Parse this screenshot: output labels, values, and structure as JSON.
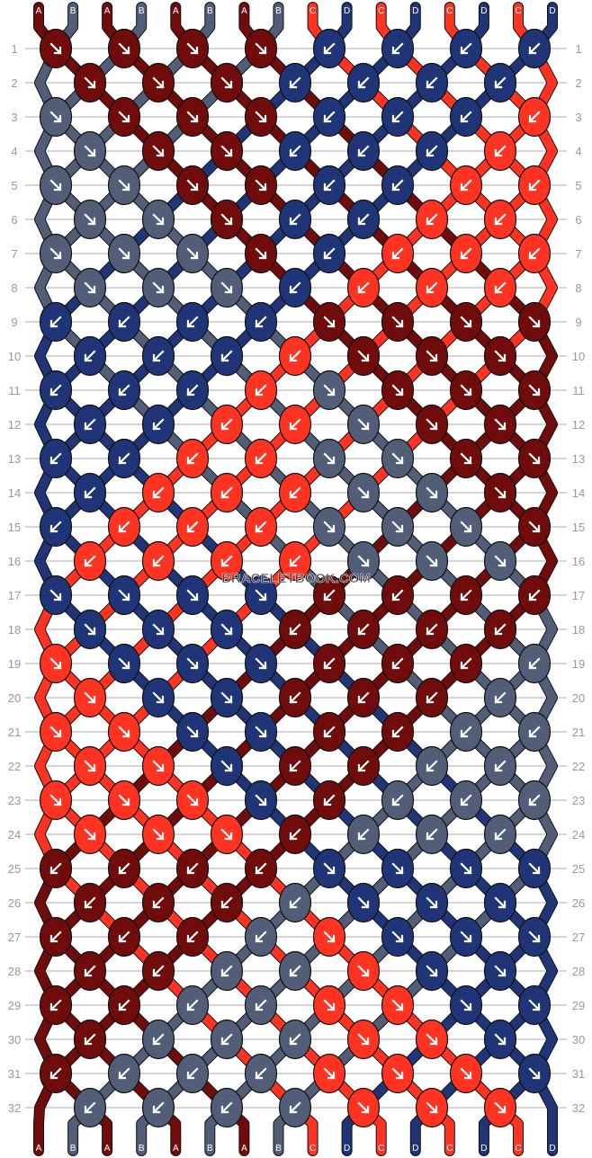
{
  "watermark": "BRACELETBOOK.COM",
  "colors": {
    "A": "#700c0c",
    "B": "#525e78",
    "C": "#ff3322",
    "D": "#203578"
  },
  "strings_top": [
    "A",
    "B",
    "A",
    "B",
    "A",
    "B",
    "A",
    "B",
    "C",
    "D",
    "C",
    "D",
    "C",
    "D",
    "C",
    "D"
  ],
  "strings_bottom": [
    "A",
    "B",
    "A",
    "B",
    "A",
    "B",
    "A",
    "B",
    "C",
    "D",
    "C",
    "D",
    "C",
    "D",
    "C",
    "D"
  ],
  "rows": [
    [
      "A↘",
      "A↘",
      "A↘",
      "A↘",
      "D↙",
      "D↙",
      "D↙",
      "D↙"
    ],
    [
      "A↘",
      "A↘",
      "A↘",
      "D↙",
      "D↙",
      "D↙",
      "D↙"
    ],
    [
      "B↘",
      "A↘",
      "A↘",
      "A↘",
      "D↙",
      "D↙",
      "D↙",
      "C↙"
    ],
    [
      "B↘",
      "A↘",
      "A↘",
      "D↙",
      "D↙",
      "D↙",
      "C↙"
    ],
    [
      "B↘",
      "B↘",
      "A↘",
      "A↘",
      "D↙",
      "D↙",
      "C↙",
      "C↙"
    ],
    [
      "B↘",
      "B↘",
      "A↘",
      "D↙",
      "D↙",
      "C↙",
      "C↙"
    ],
    [
      "B↘",
      "B↘",
      "B↘",
      "A↘",
      "D↙",
      "C↙",
      "C↙",
      "C↙"
    ],
    [
      "B↘",
      "B↘",
      "B↘",
      "D↙",
      "C↙",
      "C↙",
      "C↙"
    ],
    [
      "D↙",
      "D↙",
      "D↙",
      "D↙",
      "A↘",
      "A↘",
      "A↘",
      "A↘"
    ],
    [
      "D↙",
      "D↙",
      "D↙",
      "C↙",
      "A↘",
      "A↘",
      "A↘"
    ],
    [
      "D↙",
      "D↙",
      "D↙",
      "C↙",
      "B↘",
      "A↘",
      "A↘",
      "A↘"
    ],
    [
      "D↙",
      "D↙",
      "C↙",
      "C↙",
      "B↘",
      "A↘",
      "A↘"
    ],
    [
      "D↙",
      "D↙",
      "C↙",
      "C↙",
      "B↘",
      "B↘",
      "A↘",
      "A↘"
    ],
    [
      "D↙",
      "C↙",
      "C↙",
      "C↙",
      "B↘",
      "B↘",
      "A↘"
    ],
    [
      "D↙",
      "C↙",
      "C↙",
      "C↙",
      "B↘",
      "B↘",
      "B↘",
      "A↘"
    ],
    [
      "C↙",
      "C↙",
      "C↙",
      "C↙",
      "B↘",
      "B↘",
      "B↘"
    ],
    [
      "D↘",
      "D↘",
      "D↘",
      "D↘",
      "A↙",
      "A↙",
      "A↙",
      "A↙"
    ],
    [
      "D↘",
      "D↘",
      "D↘",
      "A↙",
      "A↙",
      "A↙",
      "A↙"
    ],
    [
      "C↘",
      "D↘",
      "D↘",
      "D↘",
      "A↙",
      "A↙",
      "A↙",
      "B↙"
    ],
    [
      "C↘",
      "D↘",
      "D↘",
      "A↙",
      "A↙",
      "A↙",
      "B↙"
    ],
    [
      "C↘",
      "C↘",
      "D↘",
      "D↘",
      "A↙",
      "A↙",
      "B↙",
      "B↙"
    ],
    [
      "C↘",
      "C↘",
      "D↘",
      "A↙",
      "A↙",
      "B↙",
      "B↙"
    ],
    [
      "C↘",
      "C↘",
      "C↘",
      "D↘",
      "A↙",
      "B↙",
      "B↙",
      "B↙"
    ],
    [
      "C↘",
      "C↘",
      "C↘",
      "A↙",
      "B↙",
      "B↙",
      "B↙"
    ],
    [
      "A↙",
      "A↙",
      "A↙",
      "A↙",
      "D↘",
      "D↘",
      "D↘",
      "D↘"
    ],
    [
      "A↙",
      "A↙",
      "A↙",
      "B↙",
      "D↘",
      "D↘",
      "D↘"
    ],
    [
      "A↙",
      "A↙",
      "A↙",
      "B↙",
      "C↘",
      "D↘",
      "D↘",
      "D↘"
    ],
    [
      "A↙",
      "A↙",
      "B↙",
      "B↙",
      "C↘",
      "D↘",
      "D↘"
    ],
    [
      "A↙",
      "A↙",
      "B↙",
      "B↙",
      "C↘",
      "C↘",
      "D↘",
      "D↘"
    ],
    [
      "A↙",
      "B↙",
      "B↙",
      "B↙",
      "C↘",
      "C↘",
      "D↘"
    ],
    [
      "A↙",
      "B↙",
      "B↙",
      "B↙",
      "C↘",
      "C↘",
      "C↘",
      "D↘"
    ],
    [
      "B↙",
      "B↙",
      "B↙",
      "B↙",
      "C↘",
      "C↘",
      "C↘"
    ]
  ]
}
